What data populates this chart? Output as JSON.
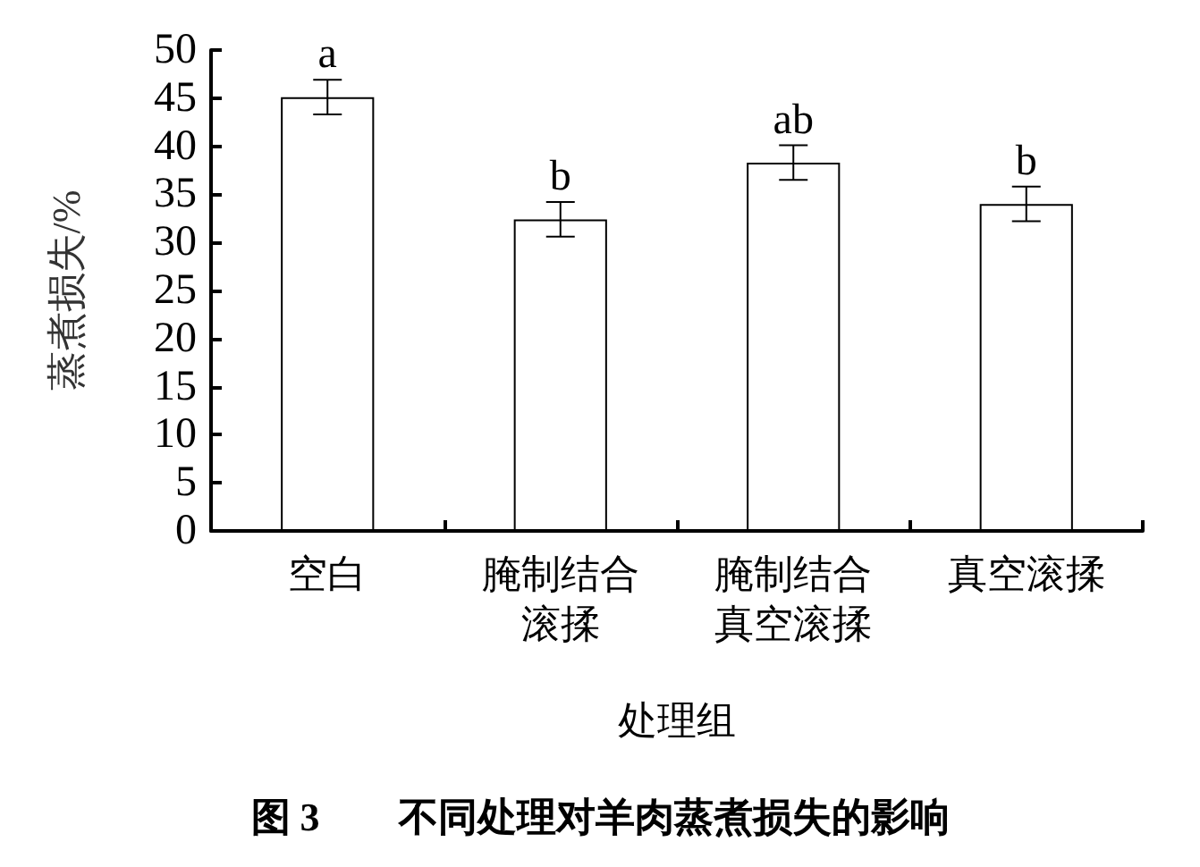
{
  "chart_data": {
    "type": "bar",
    "title": "图 3　　不同处理对羊肉蒸煮损失的影响",
    "xlabel": "处理组",
    "ylabel": "蒸煮损失/%",
    "categories": [
      "空白",
      "腌制结合滚揉",
      "腌制结合真空滚揉",
      "真空滚揉"
    ],
    "values": [
      45.1,
      32.4,
      38.3,
      34.0
    ],
    "errors": [
      1.8,
      1.8,
      1.8,
      1.8
    ],
    "color": "#ffffff",
    "ylim": [
      0,
      50
    ],
    "yticks": [
      0,
      5,
      10,
      15,
      20,
      25,
      30,
      35,
      40,
      45,
      50
    ],
    "grid": false,
    "annotations": [
      {
        "text": "a",
        "x": "空白",
        "y": 46.9
      },
      {
        "text": "b",
        "x": "腌制结合滚揉",
        "y": 34.2
      },
      {
        "text": "ab",
        "x": "腌制结合真空滚揉",
        "y": 40.1
      },
      {
        "text": "b",
        "x": "真空滚揉",
        "y": 35.8
      }
    ]
  }
}
